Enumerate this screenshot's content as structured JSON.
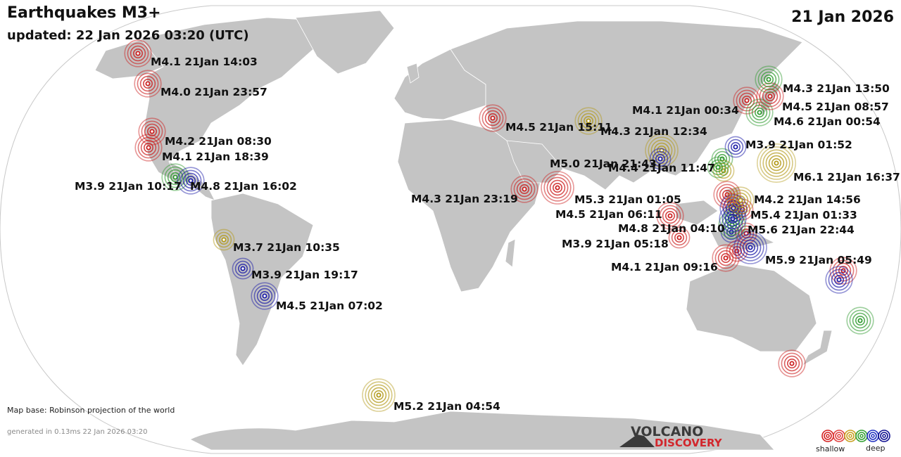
{
  "header": {
    "title": "Earthquakes M3+",
    "updated": "updated: 22 Jan 2026 03:20 (UTC)",
    "date": "21 Jan 2026"
  },
  "footer": {
    "map_base": "Map base: Robinson projection of the world",
    "generated": "generated in 0.13ms 22 Jan 2026 03:20"
  },
  "logo": {
    "line1": "VOLCANO",
    "line2": "DISCOVERY"
  },
  "legend": {
    "shallow": "shallow",
    "deep": "deep",
    "colors": [
      "#d42020",
      "#e04040",
      "#c8a020",
      "#30a030",
      "#2030c0",
      "#101090"
    ]
  },
  "depth_colors": {
    "red": "#cc1f1f",
    "olive": "#b39a1a",
    "green": "#2e9a2e",
    "blue": "#1c1ca8"
  },
  "quakes": [
    {
      "label": "M4.1 21Jan 14:03",
      "color": "red"
    },
    {
      "label": "M4.0 21Jan 23:57",
      "color": "red"
    },
    {
      "label": "M4.2 21Jan 08:30",
      "color": "red"
    },
    {
      "label": "M4.1 21Jan 18:39",
      "color": "red"
    },
    {
      "label": "M3.9 21Jan 10:17",
      "color": "green"
    },
    {
      "label": "M4.8 21Jan 16:02",
      "color": "blue"
    },
    {
      "label": "M3.7 21Jan 10:35",
      "color": "olive"
    },
    {
      "label": "M3.9 21Jan 19:17",
      "color": "blue"
    },
    {
      "label": "M4.5 21Jan 07:02",
      "color": "blue"
    },
    {
      "label": "M5.2 21Jan 04:54",
      "color": "olive"
    },
    {
      "label": "M4.5 21Jan 15:11",
      "color": "red"
    },
    {
      "label": "M4.3 21Jan 23:19",
      "color": "red"
    },
    {
      "label": "M5.3 21Jan 01:05",
      "color": "red"
    },
    {
      "label": "M5.0 21Jan 21:43",
      "color": "olive"
    },
    {
      "label": "M4.3 21Jan 12:34",
      "color": "olive"
    },
    {
      "label": "M4.1 21Jan 00:34",
      "color": "red"
    },
    {
      "label": "M4.4 21Jan 11:47",
      "color": "blue"
    },
    {
      "label": "M4.5 21Jan 06:11",
      "color": "red"
    },
    {
      "label": "M3.9 21Jan 05:18",
      "color": "red"
    },
    {
      "label": "M4.8 21Jan 04:10",
      "color": "green"
    },
    {
      "label": "M4.1 21Jan 09:16",
      "color": "red"
    },
    {
      "label": "M5.9 21Jan 05:49",
      "color": "blue"
    },
    {
      "label": "M5.6 21Jan 22:44",
      "color": "blue"
    },
    {
      "label": "M5.4 21Jan 01:33",
      "color": "blue"
    },
    {
      "label": "M4.2 21Jan 14:56",
      "color": "olive"
    },
    {
      "label": "M3.9 21Jan 01:52",
      "color": "blue"
    },
    {
      "label": "M6.1 21Jan 16:37",
      "color": "olive"
    },
    {
      "label": "M4.6 21Jan 00:54",
      "color": "green"
    },
    {
      "label": "M4.5 21Jan 08:57",
      "color": "red"
    },
    {
      "label": "M4.3 21Jan 13:50",
      "color": "green"
    }
  ],
  "extra_markers": [
    {
      "color": "green"
    },
    {
      "color": "olive"
    },
    {
      "color": "red"
    },
    {
      "color": "red"
    },
    {
      "color": "green"
    },
    {
      "color": "blue"
    },
    {
      "color": "red"
    },
    {
      "color": "red"
    },
    {
      "color": "red"
    },
    {
      "color": "blue"
    },
    {
      "color": "green"
    },
    {
      "color": "red"
    },
    {
      "color": "green"
    },
    {
      "color": "red"
    }
  ]
}
